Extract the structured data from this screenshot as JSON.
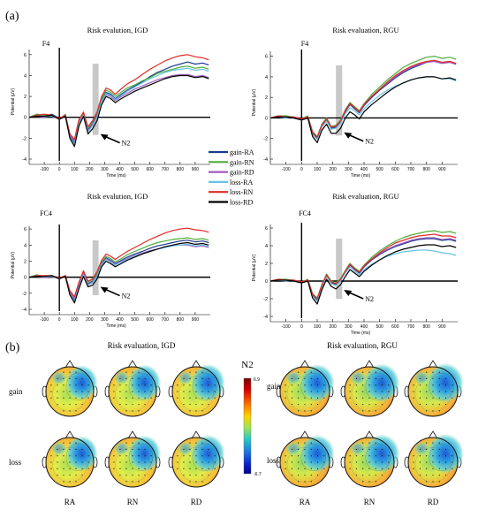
{
  "panel_labels": {
    "a": "(a)",
    "b": "(b)"
  },
  "chart_data": [
    {
      "type": "line",
      "title": "Risk evalution, IGD",
      "electrode": "F4",
      "xlabel": "Time (ms)",
      "ylabel": "Potential (μV)",
      "xlim": [
        -200,
        1000
      ],
      "ylim": [
        -4,
        7
      ],
      "xticks": [
        -100,
        0,
        100,
        200,
        300,
        400,
        500,
        600,
        700,
        800,
        900
      ],
      "yticks": [
        -4,
        -2,
        0,
        2,
        4,
        6
      ],
      "highlight_window": [
        220,
        260
      ],
      "annotation": "N2",
      "x": [
        -200,
        -150,
        -100,
        -50,
        0,
        40,
        70,
        100,
        130,
        160,
        190,
        220,
        250,
        280,
        310,
        340,
        370,
        400,
        450,
        500,
        550,
        600,
        650,
        700,
        750,
        800,
        850,
        900,
        950,
        990
      ],
      "series": [
        {
          "name": "gain-RA",
          "values": [
            0,
            0.2,
            0.1,
            0.3,
            -0.1,
            0.2,
            -1.8,
            -2.4,
            -0.5,
            0.3,
            -1.2,
            -0.6,
            0.2,
            1.6,
            2.4,
            2.2,
            1.8,
            2.1,
            2.6,
            3.0,
            3.4,
            3.9,
            4.3,
            4.6,
            4.9,
            5.1,
            5.3,
            5.1,
            5.2,
            5.0
          ]
        },
        {
          "name": "gain-RN",
          "values": [
            0,
            0.3,
            0.2,
            0.2,
            -0.2,
            0.3,
            -1.6,
            -2.2,
            -0.3,
            0.4,
            -1.0,
            -0.4,
            0.4,
            1.8,
            2.6,
            2.4,
            2.0,
            2.3,
            2.8,
            3.1,
            3.5,
            3.8,
            4.2,
            4.4,
            4.6,
            4.8,
            4.9,
            4.7,
            4.8,
            4.6
          ]
        },
        {
          "name": "gain-RD",
          "values": [
            0,
            0.1,
            0.0,
            0.2,
            -0.2,
            0.1,
            -1.7,
            -2.3,
            -0.4,
            0.2,
            -1.3,
            -0.7,
            0.1,
            1.4,
            2.2,
            2.0,
            1.6,
            1.9,
            2.3,
            2.7,
            3.0,
            3.3,
            3.6,
            3.8,
            4.0,
            4.1,
            4.1,
            3.9,
            4.0,
            3.8
          ]
        },
        {
          "name": "loss-RA",
          "values": [
            0,
            0.2,
            0.1,
            0.1,
            -0.1,
            0.2,
            -1.9,
            -2.6,
            -0.6,
            0.2,
            -1.4,
            -0.8,
            0.0,
            1.5,
            2.3,
            2.1,
            1.7,
            2.0,
            2.5,
            2.9,
            3.3,
            3.7,
            4.0,
            4.3,
            4.5,
            4.6,
            4.7,
            4.5,
            4.6,
            4.4
          ]
        },
        {
          "name": "loss-RN",
          "values": [
            0,
            0.2,
            0.3,
            0.2,
            -0.1,
            0.2,
            -1.6,
            -2.1,
            -0.2,
            0.5,
            -0.9,
            -0.3,
            0.5,
            2.0,
            2.8,
            2.6,
            2.2,
            2.6,
            3.2,
            3.6,
            4.1,
            4.6,
            5.0,
            5.4,
            5.7,
            5.9,
            6.0,
            5.8,
            5.7,
            5.5
          ]
        },
        {
          "name": "loss-RD",
          "values": [
            0,
            0.1,
            0.1,
            0.2,
            -0.2,
            0.1,
            -2.0,
            -2.8,
            -0.8,
            0.1,
            -1.6,
            -1.1,
            -0.3,
            1.2,
            2.0,
            1.8,
            1.4,
            1.7,
            2.1,
            2.5,
            2.8,
            3.1,
            3.4,
            3.7,
            3.9,
            4.0,
            4.0,
            3.8,
            3.9,
            3.7
          ]
        }
      ]
    },
    {
      "type": "line",
      "title": "Risk evaluation, RGU",
      "electrode": "F4",
      "xlabel": "Time (ms)",
      "ylabel": "Potential (μV)",
      "xlim": [
        -200,
        1000
      ],
      "ylim": [
        -4,
        7
      ],
      "xticks": [
        -100,
        0,
        100,
        200,
        300,
        400,
        500,
        600,
        700,
        800,
        900
      ],
      "yticks": [
        -4,
        -2,
        0,
        2,
        4,
        6
      ],
      "highlight_window": [
        220,
        260
      ],
      "annotation": "N2",
      "x": [
        -200,
        -150,
        -100,
        -50,
        0,
        40,
        70,
        100,
        130,
        160,
        190,
        220,
        250,
        280,
        310,
        340,
        370,
        400,
        450,
        500,
        550,
        600,
        650,
        700,
        750,
        800,
        850,
        900,
        950,
        990
      ],
      "series": [
        {
          "name": "gain-RA",
          "values": [
            0,
            0.1,
            0.2,
            0.0,
            -0.2,
            0.1,
            -1.5,
            -2.0,
            -0.8,
            -0.2,
            -1.0,
            -0.9,
            -0.4,
            0.6,
            1.3,
            0.9,
            0.5,
            1.2,
            2.0,
            2.7,
            3.3,
            3.9,
            4.4,
            4.8,
            5.1,
            5.4,
            5.6,
            5.4,
            5.5,
            5.3
          ]
        },
        {
          "name": "gain-RN",
          "values": [
            0,
            0.2,
            0.2,
            0.1,
            -0.1,
            0.2,
            -1.3,
            -1.8,
            -0.6,
            0.0,
            -0.8,
            -0.7,
            -0.2,
            0.8,
            1.5,
            1.1,
            0.7,
            1.4,
            2.3,
            3.0,
            3.7,
            4.3,
            4.9,
            5.3,
            5.6,
            5.9,
            6.0,
            5.8,
            5.9,
            5.7
          ]
        },
        {
          "name": "gain-RD",
          "values": [
            0,
            0.1,
            0.1,
            0.1,
            -0.1,
            0.1,
            -1.4,
            -1.9,
            -0.7,
            -0.1,
            -0.9,
            -0.8,
            -0.3,
            0.7,
            1.4,
            1.0,
            0.6,
            1.3,
            2.1,
            2.8,
            3.4,
            4.0,
            4.5,
            4.9,
            5.2,
            5.4,
            5.5,
            5.3,
            5.4,
            5.2
          ]
        },
        {
          "name": "loss-RA",
          "values": [
            0,
            0.1,
            0.0,
            0.1,
            -0.2,
            0.0,
            -1.6,
            -2.1,
            -0.9,
            -0.3,
            -1.1,
            -1.0,
            -0.5,
            0.4,
            1.0,
            0.7,
            0.3,
            0.9,
            1.6,
            2.2,
            2.7,
            3.1,
            3.4,
            3.7,
            3.9,
            4.0,
            4.0,
            3.8,
            3.8,
            3.6
          ]
        },
        {
          "name": "loss-RN",
          "values": [
            0,
            0.2,
            0.1,
            0.1,
            -0.1,
            0.1,
            -1.4,
            -1.9,
            -0.7,
            -0.1,
            -0.9,
            -0.8,
            -0.3,
            0.7,
            1.4,
            1.0,
            0.6,
            1.3,
            2.1,
            2.8,
            3.5,
            4.1,
            4.6,
            5.0,
            5.3,
            5.5,
            5.6,
            5.4,
            5.5,
            5.3
          ]
        },
        {
          "name": "loss-RD",
          "values": [
            0,
            0.1,
            0.1,
            0.0,
            -0.2,
            0.0,
            -1.8,
            -2.4,
            -1.2,
            -0.6,
            -1.5,
            -1.5,
            -1.0,
            0.0,
            0.6,
            0.3,
            -0.1,
            0.6,
            1.3,
            1.9,
            2.5,
            3.0,
            3.4,
            3.7,
            3.9,
            4.0,
            4.0,
            3.8,
            3.9,
            3.7
          ]
        }
      ]
    },
    {
      "type": "line",
      "title": "Risk evalution, IGD",
      "electrode": "FC4",
      "xlabel": "Time (ms)",
      "ylabel": "Potential (μV)",
      "xlim": [
        -200,
        1000
      ],
      "ylim": [
        -4,
        7
      ],
      "xticks": [
        -100,
        0,
        100,
        200,
        300,
        400,
        500,
        600,
        700,
        800,
        900
      ],
      "yticks": [
        -4,
        -2,
        0,
        2,
        4,
        6
      ],
      "highlight_window": [
        220,
        260
      ],
      "annotation": "N2",
      "x": [
        -200,
        -150,
        -100,
        -50,
        0,
        40,
        70,
        100,
        130,
        160,
        190,
        220,
        250,
        280,
        310,
        340,
        370,
        400,
        450,
        500,
        550,
        600,
        650,
        700,
        750,
        800,
        850,
        900,
        950,
        990
      ],
      "series": [
        {
          "name": "gain-RA",
          "values": [
            0,
            0.2,
            0.0,
            0.2,
            -0.2,
            0.1,
            -2.0,
            -2.8,
            -1.0,
            0.4,
            -0.8,
            -0.5,
            0.3,
            1.7,
            2.4,
            2.1,
            1.7,
            2.0,
            2.5,
            2.9,
            3.2,
            3.6,
            3.9,
            4.1,
            4.3,
            4.5,
            4.6,
            4.4,
            4.5,
            4.3
          ]
        },
        {
          "name": "gain-RN",
          "values": [
            0,
            0.3,
            0.1,
            0.2,
            -0.1,
            0.2,
            -1.8,
            -2.5,
            -0.7,
            0.7,
            -0.6,
            -0.3,
            0.5,
            1.9,
            2.6,
            2.3,
            1.9,
            2.2,
            2.8,
            3.2,
            3.6,
            4.0,
            4.3,
            4.5,
            4.7,
            4.8,
            4.9,
            4.7,
            4.8,
            4.6
          ]
        },
        {
          "name": "gain-RD",
          "values": [
            0,
            0.1,
            0.0,
            0.1,
            -0.2,
            0.1,
            -1.9,
            -2.7,
            -0.9,
            0.5,
            -0.9,
            -0.6,
            0.2,
            1.6,
            2.3,
            2.0,
            1.6,
            1.9,
            2.3,
            2.7,
            3.0,
            3.3,
            3.5,
            3.7,
            3.9,
            4.0,
            4.0,
            3.8,
            3.9,
            3.7
          ]
        },
        {
          "name": "loss-RA",
          "values": [
            0,
            0.2,
            0.1,
            0.1,
            -0.2,
            0.1,
            -2.1,
            -3.0,
            -1.2,
            0.3,
            -1.0,
            -0.7,
            0.1,
            1.5,
            2.2,
            1.9,
            1.5,
            1.8,
            2.2,
            2.6,
            2.9,
            3.2,
            3.5,
            3.7,
            3.9,
            4.0,
            4.1,
            3.9,
            4.0,
            3.8
          ]
        },
        {
          "name": "loss-RN",
          "values": [
            0,
            0.2,
            0.2,
            0.2,
            -0.1,
            0.2,
            -1.7,
            -2.4,
            -0.6,
            0.8,
            -0.5,
            -0.2,
            0.7,
            2.1,
            2.9,
            2.6,
            2.2,
            2.6,
            3.2,
            3.7,
            4.2,
            4.7,
            5.1,
            5.5,
            5.8,
            6.0,
            6.1,
            5.9,
            5.8,
            5.6
          ]
        },
        {
          "name": "loss-RD",
          "values": [
            0,
            0.1,
            0.1,
            0.2,
            -0.2,
            0.1,
            -2.2,
            -3.2,
            -1.4,
            0.1,
            -1.2,
            -1.0,
            -0.2,
            1.3,
            2.0,
            1.7,
            1.3,
            1.6,
            2.1,
            2.5,
            2.9,
            3.2,
            3.5,
            3.8,
            4.0,
            4.2,
            4.3,
            4.1,
            4.2,
            4.0
          ]
        }
      ]
    },
    {
      "type": "line",
      "title": "Risk evaluation, RGU",
      "electrode": "FC4",
      "xlabel": "Time (ms)",
      "ylabel": "Potential (μV)",
      "xlim": [
        -200,
        1000
      ],
      "ylim": [
        -4,
        7
      ],
      "xticks": [
        -100,
        0,
        100,
        200,
        300,
        400,
        500,
        600,
        700,
        800,
        900
      ],
      "yticks": [
        -4,
        -2,
        0,
        2,
        4,
        6
      ],
      "highlight_window": [
        220,
        260
      ],
      "annotation": "N2",
      "x": [
        -200,
        -150,
        -100,
        -50,
        0,
        40,
        70,
        100,
        130,
        160,
        190,
        220,
        250,
        280,
        310,
        340,
        370,
        400,
        450,
        500,
        550,
        600,
        650,
        700,
        750,
        800,
        850,
        900,
        950,
        990
      ],
      "series": [
        {
          "name": "gain-RA",
          "values": [
            0,
            0.1,
            0.1,
            0.0,
            -0.2,
            0.1,
            -1.6,
            -2.2,
            -0.6,
            0.6,
            -0.2,
            -0.4,
            0.1,
            1.0,
            1.8,
            1.3,
            0.9,
            1.6,
            2.4,
            3.0,
            3.5,
            3.9,
            4.2,
            4.5,
            4.7,
            4.8,
            4.8,
            4.6,
            4.7,
            4.5
          ]
        },
        {
          "name": "gain-RN",
          "values": [
            0,
            0.2,
            0.2,
            0.1,
            -0.1,
            0.2,
            -1.4,
            -1.9,
            -0.4,
            0.8,
            0.0,
            -0.2,
            0.3,
            1.2,
            2.0,
            1.5,
            1.1,
            1.8,
            2.7,
            3.4,
            4.0,
            4.5,
            4.9,
            5.2,
            5.4,
            5.6,
            5.7,
            5.5,
            5.6,
            5.4
          ]
        },
        {
          "name": "gain-RD",
          "values": [
            0,
            0.1,
            0.1,
            0.1,
            -0.1,
            0.1,
            -1.5,
            -2.0,
            -0.5,
            0.7,
            -0.1,
            -0.3,
            0.2,
            1.1,
            1.9,
            1.4,
            1.0,
            1.7,
            2.5,
            3.1,
            3.6,
            4.0,
            4.3,
            4.6,
            4.8,
            4.9,
            4.9,
            4.7,
            4.8,
            4.6
          ]
        },
        {
          "name": "loss-RA",
          "values": [
            0,
            0.1,
            0.0,
            0.1,
            -0.2,
            0.0,
            -1.7,
            -2.3,
            -0.7,
            0.5,
            -0.3,
            -0.5,
            0.0,
            0.9,
            1.6,
            1.1,
            0.7,
            1.3,
            1.9,
            2.4,
            2.8,
            3.1,
            3.3,
            3.4,
            3.5,
            3.5,
            3.4,
            3.2,
            3.1,
            2.9
          ]
        },
        {
          "name": "loss-RN",
          "values": [
            0,
            0.2,
            0.1,
            0.1,
            -0.1,
            0.1,
            -1.5,
            -2.0,
            -0.5,
            0.7,
            -0.1,
            -0.3,
            0.2,
            1.1,
            1.9,
            1.4,
            1.0,
            1.7,
            2.5,
            3.2,
            3.8,
            4.3,
            4.6,
            4.9,
            5.1,
            5.2,
            5.3,
            5.1,
            5.1,
            4.9
          ]
        },
        {
          "name": "loss-RD",
          "values": [
            0,
            0.1,
            0.1,
            0.0,
            -0.2,
            0.0,
            -1.9,
            -2.6,
            -1.0,
            0.2,
            -0.6,
            -0.9,
            -0.4,
            0.5,
            1.3,
            0.9,
            0.5,
            1.1,
            1.8,
            2.4,
            2.9,
            3.3,
            3.6,
            3.8,
            4.0,
            4.1,
            4.1,
            3.9,
            4.0,
            3.8
          ]
        }
      ]
    }
  ],
  "legend": {
    "entries": [
      "gain-RA",
      "gain-RN",
      "gain-RD",
      "loss-RA",
      "loss-RN",
      "loss-RD"
    ],
    "colors": [
      "#1a3a8f",
      "#4fae3a",
      "#a05cc0",
      "#68c3e6",
      "#e02a26",
      "#000000"
    ]
  },
  "topo": {
    "title_left": "Risk evaluation, IGD",
    "title_right": "Risk evaluation, RGU",
    "component": "N2",
    "rows": [
      "gain",
      "loss"
    ],
    "columns": [
      "RA",
      "RN",
      "RD"
    ],
    "colorbar": {
      "max_label": "6.9",
      "min_label": "-6.7",
      "max": 6.9,
      "min": -6.7
    }
  }
}
